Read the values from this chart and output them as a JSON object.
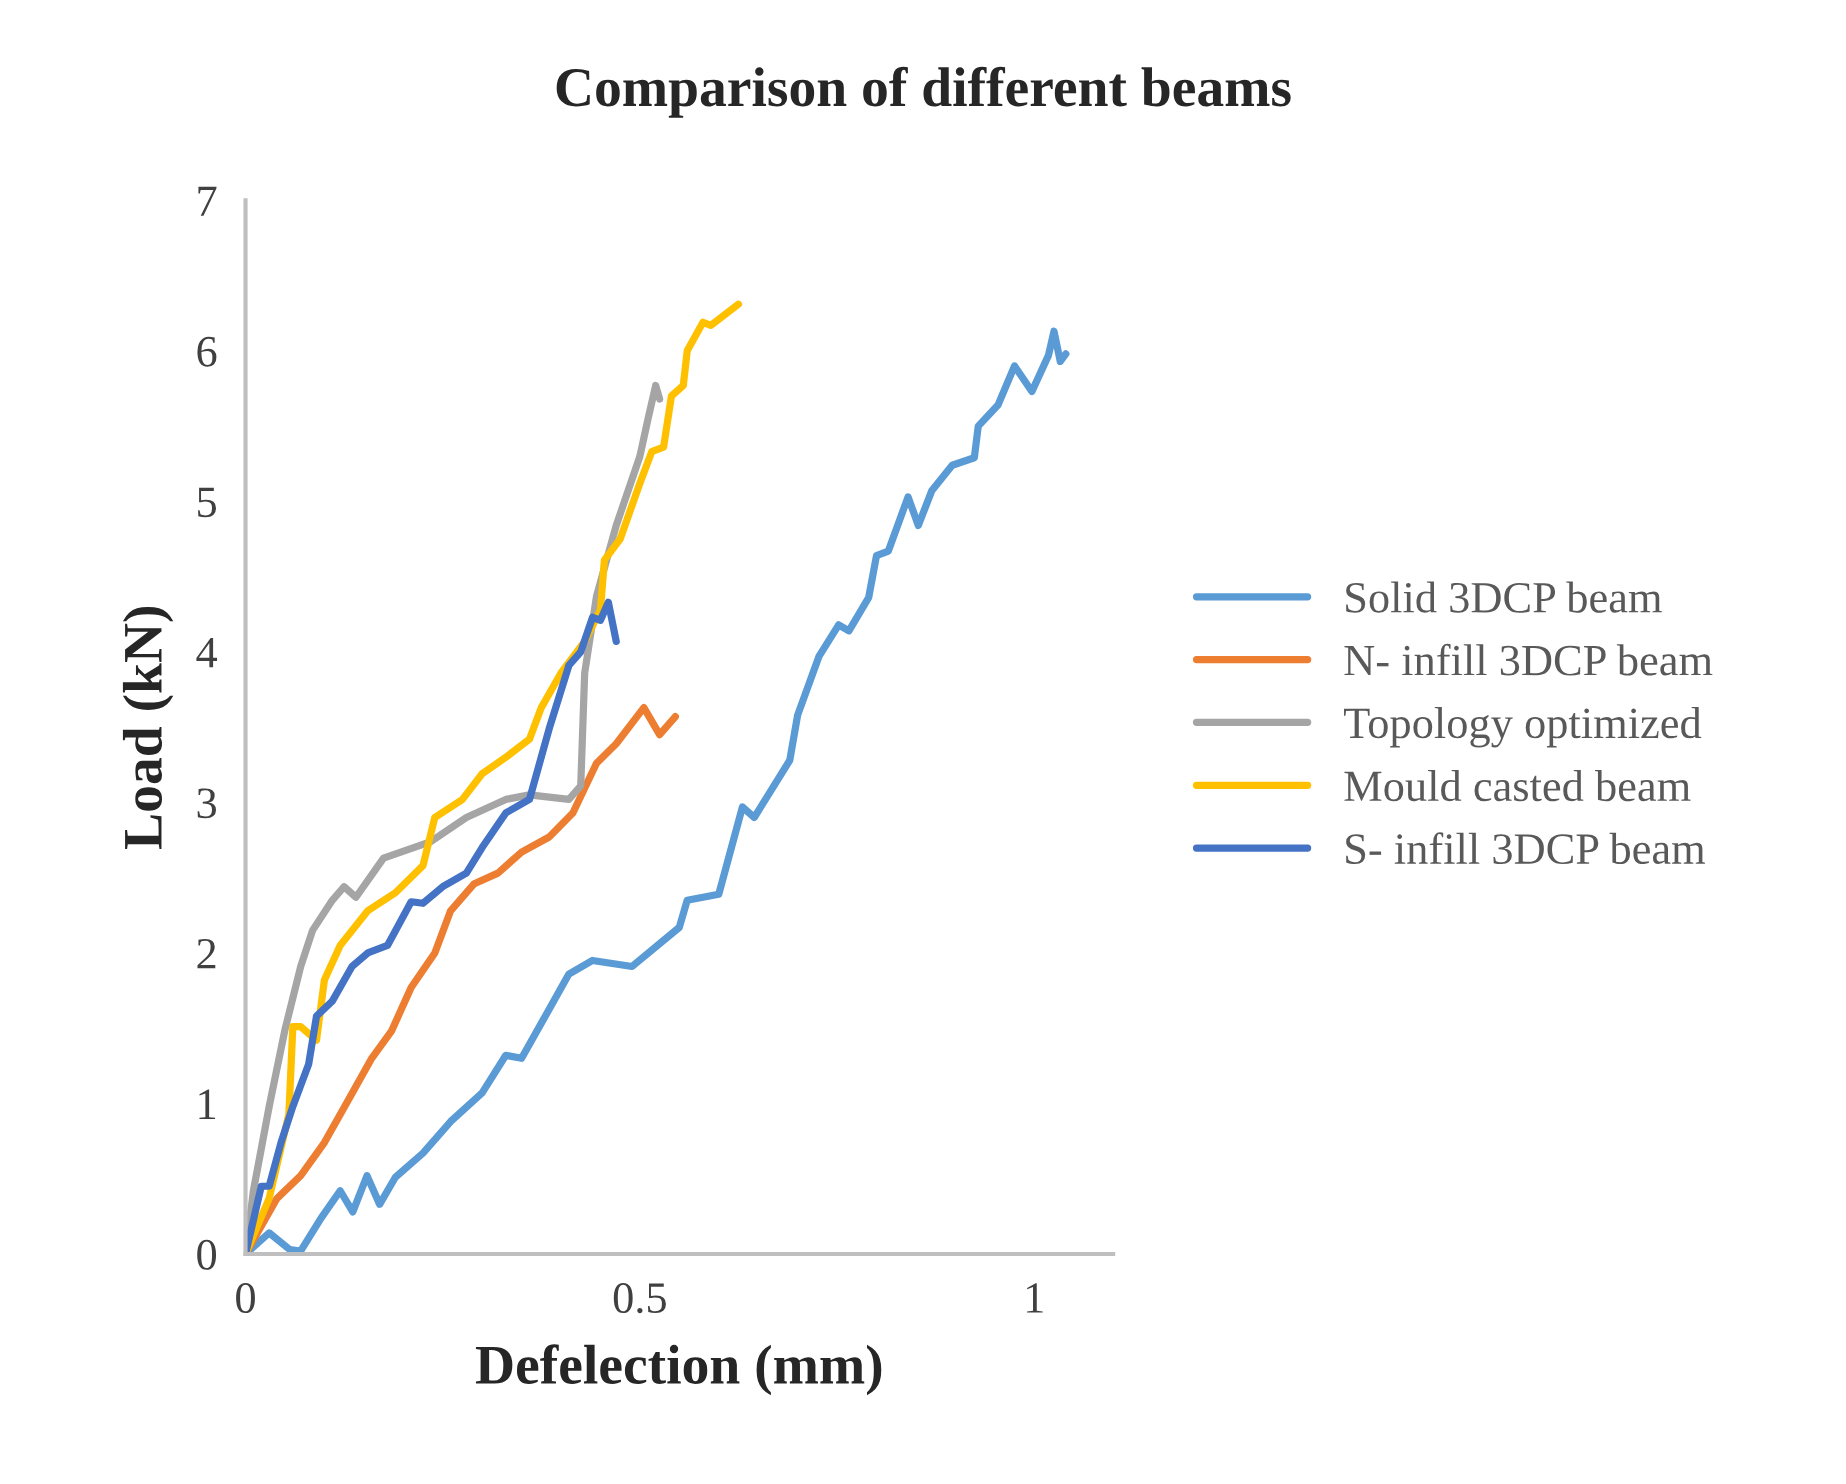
{
  "chart_data": {
    "type": "line",
    "title": "Comparison of different beams",
    "xlabel": "Defelection (mm)",
    "ylabel": "Load (kN)",
    "xlim": [
      0,
      1.1
    ],
    "ylim": [
      0,
      7
    ],
    "xticks": [
      0,
      0.5,
      1
    ],
    "yticks": [
      0,
      1,
      2,
      3,
      4,
      5,
      6,
      7
    ],
    "grid": false,
    "legend": "right",
    "marker": "none",
    "line_style": "solid",
    "series": [
      {
        "name": "Solid 3DCP beam",
        "color": "#5b9bd5",
        "x": [
          0,
          0.03,
          0.056,
          0.07,
          0.096,
          0.12,
          0.136,
          0.154,
          0.17,
          0.19,
          0.225,
          0.26,
          0.3,
          0.33,
          0.35,
          0.38,
          0.41,
          0.44,
          0.49,
          0.55,
          0.56,
          0.6,
          0.63,
          0.645,
          0.69,
          0.7,
          0.727,
          0.752,
          0.765,
          0.79,
          0.8,
          0.815,
          0.84,
          0.853,
          0.87,
          0.896,
          0.924,
          0.929,
          0.954,
          0.975,
          0.997,
          1.018,
          1.025,
          1.033,
          1.04
        ],
        "values": [
          0,
          0.14,
          0.03,
          0.02,
          0.24,
          0.42,
          0.28,
          0.52,
          0.33,
          0.51,
          0.67,
          0.88,
          1.07,
          1.32,
          1.3,
          1.58,
          1.86,
          1.95,
          1.91,
          2.17,
          2.35,
          2.39,
          2.97,
          2.9,
          3.28,
          3.58,
          3.97,
          4.18,
          4.14,
          4.36,
          4.64,
          4.67,
          5.03,
          4.84,
          5.07,
          5.24,
          5.29,
          5.5,
          5.64,
          5.9,
          5.73,
          5.97,
          6.13,
          5.93,
          5.98
        ]
      },
      {
        "name": "N- infill 3DCP beam",
        "color": "#ed7d31",
        "x": [
          0,
          0.04,
          0.07,
          0.1,
          0.13,
          0.16,
          0.185,
          0.21,
          0.24,
          0.26,
          0.29,
          0.32,
          0.35,
          0.385,
          0.415,
          0.445,
          0.47,
          0.505,
          0.525,
          0.545
        ],
        "values": [
          0,
          0.37,
          0.52,
          0.74,
          1.02,
          1.3,
          1.48,
          1.77,
          2.0,
          2.28,
          2.46,
          2.53,
          2.67,
          2.77,
          2.93,
          3.26,
          3.39,
          3.63,
          3.45,
          3.57
        ]
      },
      {
        "name": "Topology optimized",
        "color": "#a5a5a5",
        "x": [
          0,
          0.01,
          0.03,
          0.05,
          0.07,
          0.085,
          0.11,
          0.125,
          0.14,
          0.175,
          0.235,
          0.28,
          0.33,
          0.36,
          0.41,
          0.425,
          0.43,
          0.445,
          0.47,
          0.5,
          0.51,
          0.52,
          0.525
        ],
        "values": [
          0,
          0.42,
          0.98,
          1.49,
          1.91,
          2.15,
          2.35,
          2.44,
          2.37,
          2.63,
          2.74,
          2.9,
          3.02,
          3.05,
          3.02,
          3.11,
          3.86,
          4.37,
          4.84,
          5.3,
          5.54,
          5.77,
          5.68
        ]
      },
      {
        "name": "Mould casted beam",
        "color": "#ffc000",
        "x": [
          0,
          0.03,
          0.055,
          0.06,
          0.07,
          0.09,
          0.1,
          0.12,
          0.155,
          0.19,
          0.225,
          0.24,
          0.275,
          0.3,
          0.33,
          0.36,
          0.375,
          0.4,
          0.43,
          0.45,
          0.455,
          0.475,
          0.5,
          0.515,
          0.53,
          0.54,
          0.555,
          0.56,
          0.58,
          0.59,
          0.625
        ],
        "values": [
          0,
          0.37,
          0.93,
          1.51,
          1.51,
          1.42,
          1.82,
          2.05,
          2.28,
          2.4,
          2.58,
          2.9,
          3.02,
          3.19,
          3.3,
          3.42,
          3.63,
          3.86,
          4.07,
          4.28,
          4.61,
          4.75,
          5.12,
          5.33,
          5.36,
          5.7,
          5.77,
          6.0,
          6.19,
          6.17,
          6.31
        ]
      },
      {
        "name": "S- infill 3DCP beam",
        "color": "#4472c4",
        "x": [
          0,
          0.02,
          0.03,
          0.045,
          0.06,
          0.08,
          0.09,
          0.11,
          0.135,
          0.155,
          0.18,
          0.21,
          0.225,
          0.25,
          0.28,
          0.3,
          0.33,
          0.36,
          0.385,
          0.41,
          0.425,
          0.44,
          0.45,
          0.46,
          0.47
        ],
        "values": [
          0,
          0.45,
          0.45,
          0.74,
          0.98,
          1.26,
          1.58,
          1.68,
          1.91,
          2.0,
          2.05,
          2.34,
          2.33,
          2.44,
          2.53,
          2.7,
          2.93,
          3.02,
          3.49,
          3.91,
          4.0,
          4.23,
          4.21,
          4.33,
          4.07
        ]
      }
    ]
  }
}
